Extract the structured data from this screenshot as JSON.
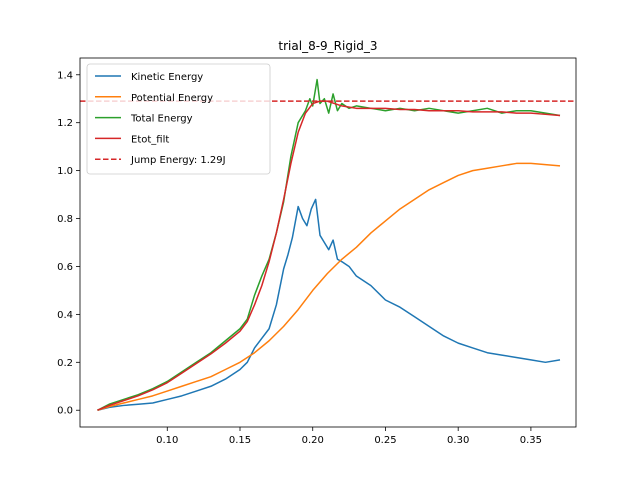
{
  "chart_data": {
    "type": "line",
    "title": "trial_8-9_Rigid_3",
    "xlabel": "",
    "ylabel": "",
    "xlim": [
      0.04,
      0.381
    ],
    "ylim": [
      -0.07,
      1.47
    ],
    "xticks": [
      0.1,
      0.15,
      0.2,
      0.25,
      0.3,
      0.35
    ],
    "xtick_labels": [
      "0.10",
      "0.15",
      "0.20",
      "0.25",
      "0.30",
      "0.35"
    ],
    "yticks": [
      0.0,
      0.2,
      0.4,
      0.6,
      0.8,
      1.0,
      1.2,
      1.4
    ],
    "ytick_labels": [
      "0.0",
      "0.2",
      "0.4",
      "0.6",
      "0.8",
      "1.0",
      "1.2",
      "1.4"
    ],
    "grid": false,
    "legend_position": "upper-left",
    "series": [
      {
        "name": "Kinetic Energy",
        "color": "#1f77b4",
        "x": [
          0.052,
          0.06,
          0.07,
          0.08,
          0.09,
          0.1,
          0.11,
          0.12,
          0.13,
          0.14,
          0.15,
          0.155,
          0.16,
          0.165,
          0.17,
          0.175,
          0.18,
          0.183,
          0.186,
          0.19,
          0.193,
          0.196,
          0.199,
          0.202,
          0.205,
          0.208,
          0.211,
          0.214,
          0.217,
          0.22,
          0.225,
          0.23,
          0.24,
          0.25,
          0.26,
          0.27,
          0.28,
          0.29,
          0.3,
          0.31,
          0.32,
          0.33,
          0.34,
          0.35,
          0.36,
          0.37
        ],
        "y": [
          0.0,
          0.012,
          0.02,
          0.025,
          0.03,
          0.045,
          0.06,
          0.08,
          0.1,
          0.13,
          0.17,
          0.2,
          0.26,
          0.3,
          0.34,
          0.44,
          0.59,
          0.65,
          0.72,
          0.85,
          0.8,
          0.77,
          0.84,
          0.88,
          0.73,
          0.7,
          0.67,
          0.71,
          0.63,
          0.62,
          0.6,
          0.56,
          0.52,
          0.46,
          0.43,
          0.39,
          0.35,
          0.31,
          0.28,
          0.26,
          0.24,
          0.23,
          0.22,
          0.21,
          0.2,
          0.21
        ]
      },
      {
        "name": "Potential Energy",
        "color": "#ff7f0e",
        "x": [
          0.052,
          0.06,
          0.07,
          0.08,
          0.09,
          0.1,
          0.11,
          0.12,
          0.13,
          0.14,
          0.15,
          0.16,
          0.17,
          0.18,
          0.19,
          0.2,
          0.21,
          0.22,
          0.23,
          0.24,
          0.25,
          0.26,
          0.27,
          0.28,
          0.29,
          0.3,
          0.31,
          0.32,
          0.33,
          0.34,
          0.35,
          0.36,
          0.37
        ],
        "y": [
          0.0,
          0.015,
          0.03,
          0.045,
          0.06,
          0.08,
          0.1,
          0.12,
          0.14,
          0.17,
          0.2,
          0.24,
          0.29,
          0.35,
          0.42,
          0.5,
          0.57,
          0.63,
          0.68,
          0.74,
          0.79,
          0.84,
          0.88,
          0.92,
          0.95,
          0.98,
          1.0,
          1.01,
          1.02,
          1.03,
          1.03,
          1.025,
          1.02
        ]
      },
      {
        "name": "Total Energy",
        "color": "#2ca02c",
        "x": [
          0.052,
          0.06,
          0.07,
          0.08,
          0.09,
          0.1,
          0.11,
          0.12,
          0.13,
          0.14,
          0.15,
          0.155,
          0.16,
          0.165,
          0.17,
          0.175,
          0.18,
          0.185,
          0.19,
          0.195,
          0.198,
          0.2,
          0.203,
          0.205,
          0.208,
          0.211,
          0.214,
          0.217,
          0.22,
          0.225,
          0.23,
          0.24,
          0.25,
          0.26,
          0.27,
          0.28,
          0.29,
          0.3,
          0.31,
          0.32,
          0.33,
          0.34,
          0.35,
          0.36,
          0.37
        ],
        "y": [
          0.0,
          0.025,
          0.045,
          0.065,
          0.09,
          0.12,
          0.16,
          0.2,
          0.24,
          0.29,
          0.34,
          0.38,
          0.48,
          0.56,
          0.63,
          0.74,
          0.87,
          1.06,
          1.2,
          1.25,
          1.3,
          1.27,
          1.38,
          1.28,
          1.3,
          1.24,
          1.32,
          1.25,
          1.28,
          1.26,
          1.27,
          1.26,
          1.25,
          1.26,
          1.25,
          1.26,
          1.25,
          1.24,
          1.25,
          1.26,
          1.24,
          1.25,
          1.25,
          1.24,
          1.23
        ]
      },
      {
        "name": "Etot_filt",
        "color": "#d62728",
        "x": [
          0.052,
          0.06,
          0.07,
          0.08,
          0.09,
          0.1,
          0.11,
          0.12,
          0.13,
          0.14,
          0.15,
          0.155,
          0.16,
          0.165,
          0.17,
          0.175,
          0.18,
          0.185,
          0.19,
          0.195,
          0.2,
          0.205,
          0.21,
          0.215,
          0.22,
          0.23,
          0.24,
          0.25,
          0.26,
          0.27,
          0.28,
          0.29,
          0.3,
          0.31,
          0.32,
          0.33,
          0.34,
          0.35,
          0.36,
          0.37
        ],
        "y": [
          0.0,
          0.02,
          0.04,
          0.06,
          0.085,
          0.115,
          0.155,
          0.195,
          0.235,
          0.28,
          0.33,
          0.37,
          0.44,
          0.52,
          0.62,
          0.74,
          0.88,
          1.03,
          1.16,
          1.24,
          1.28,
          1.29,
          1.29,
          1.28,
          1.27,
          1.26,
          1.26,
          1.26,
          1.255,
          1.255,
          1.25,
          1.25,
          1.25,
          1.245,
          1.245,
          1.245,
          1.24,
          1.24,
          1.235,
          1.23
        ]
      }
    ],
    "reference_line": {
      "name": "Jump Energy: 1.29J",
      "y": 1.29,
      "color": "#d62728",
      "style": "dashed"
    }
  }
}
